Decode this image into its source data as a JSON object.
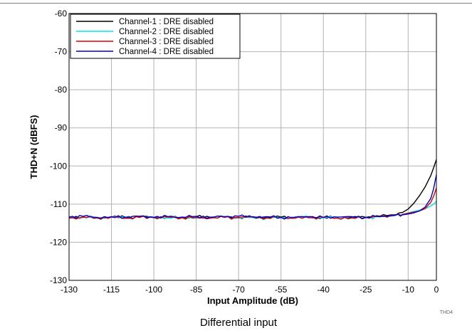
{
  "chart_data": {
    "type": "line",
    "title": "",
    "xlabel": "Input Amplitude (dB)",
    "ylabel": "THD+N (dBFS)",
    "xlim": [
      -130,
      0
    ],
    "ylim": [
      -130,
      -60
    ],
    "xticks": [
      -130,
      -115,
      -100,
      -85,
      -70,
      -55,
      -40,
      -25,
      -10,
      0
    ],
    "yticks": [
      -60,
      -70,
      -80,
      -90,
      -100,
      -110,
      -120,
      -130
    ],
    "grid": true,
    "legend_position": "top-left",
    "series": [
      {
        "name": "Channel-1 : DRE disabled",
        "color": "#000000",
        "x": [
          -130,
          -125,
          -120,
          -115,
          -110,
          -105,
          -100,
          -95,
          -90,
          -85,
          -80,
          -75,
          -70,
          -65,
          -60,
          -55,
          -50,
          -45,
          -40,
          -35,
          -30,
          -25,
          -20,
          -15,
          -12,
          -10,
          -8,
          -6,
          -4,
          -2,
          -1,
          0
        ],
        "y": [
          -113.5,
          -113.3,
          -113.6,
          -113.4,
          -113.5,
          -113.3,
          -113.5,
          -113.4,
          -113.6,
          -113.3,
          -113.5,
          -113.4,
          -113.5,
          -113.3,
          -113.5,
          -113.4,
          -113.6,
          -113.5,
          -113.5,
          -113.6,
          -113.4,
          -113.5,
          -113.2,
          -112.8,
          -112.2,
          -111.3,
          -109.8,
          -107.8,
          -105.5,
          -102.5,
          -100.5,
          -98.3
        ]
      },
      {
        "name": "Channel-2 : DRE disabled",
        "color": "#00e5ee",
        "x": [
          -130,
          -125,
          -120,
          -115,
          -110,
          -105,
          -100,
          -95,
          -90,
          -85,
          -80,
          -75,
          -70,
          -65,
          -60,
          -55,
          -50,
          -45,
          -40,
          -35,
          -30,
          -25,
          -20,
          -15,
          -12,
          -10,
          -8,
          -6,
          -4,
          -2,
          -1,
          0
        ],
        "y": [
          -113.6,
          -113.4,
          -113.7,
          -113.4,
          -113.6,
          -113.5,
          -113.4,
          -113.6,
          -113.5,
          -113.7,
          -113.6,
          -113.4,
          -113.6,
          -113.5,
          -113.7,
          -113.5,
          -113.6,
          -113.4,
          -113.6,
          -113.5,
          -113.7,
          -113.6,
          -113.4,
          -113.0,
          -112.7,
          -112.3,
          -111.9,
          -111.6,
          -111.2,
          -110.5,
          -110.0,
          -109.3
        ]
      },
      {
        "name": "Channel-3 : DRE disabled",
        "color": "#e00000",
        "x": [
          -130,
          -125,
          -120,
          -115,
          -110,
          -105,
          -100,
          -95,
          -90,
          -85,
          -80,
          -75,
          -70,
          -65,
          -60,
          -55,
          -50,
          -45,
          -40,
          -35,
          -30,
          -25,
          -20,
          -15,
          -12,
          -10,
          -8,
          -6,
          -4,
          -2,
          -1,
          0
        ],
        "y": [
          -113.7,
          -113.5,
          -113.6,
          -113.4,
          -113.7,
          -113.5,
          -113.6,
          -113.4,
          -113.6,
          -113.5,
          -113.7,
          -113.5,
          -113.6,
          -113.4,
          -113.6,
          -113.5,
          -113.7,
          -113.6,
          -113.5,
          -113.7,
          -113.6,
          -113.5,
          -113.3,
          -113.0,
          -112.7,
          -112.4,
          -112.1,
          -111.8,
          -111.2,
          -109.5,
          -108.0,
          -105.8
        ]
      },
      {
        "name": "Channel-4 : DRE disabled",
        "color": "#0000cc",
        "x": [
          -130,
          -125,
          -120,
          -115,
          -110,
          -105,
          -100,
          -95,
          -90,
          -85,
          -80,
          -75,
          -70,
          -65,
          -60,
          -55,
          -50,
          -45,
          -40,
          -35,
          -30,
          -25,
          -20,
          -15,
          -12,
          -10,
          -8,
          -6,
          -4,
          -2,
          -1,
          0
        ],
        "y": [
          -113.4,
          -113.2,
          -113.5,
          -113.3,
          -113.4,
          -113.2,
          -113.5,
          -113.3,
          -113.4,
          -113.2,
          -113.4,
          -113.3,
          -113.2,
          -113.4,
          -113.3,
          -113.5,
          -113.4,
          -113.3,
          -113.5,
          -113.4,
          -113.3,
          -113.4,
          -113.2,
          -113.0,
          -112.8,
          -112.6,
          -112.3,
          -111.8,
          -110.8,
          -108.5,
          -106.0,
          -102.3
        ]
      }
    ],
    "figure_id": "THD4",
    "caption": "Differential input"
  }
}
